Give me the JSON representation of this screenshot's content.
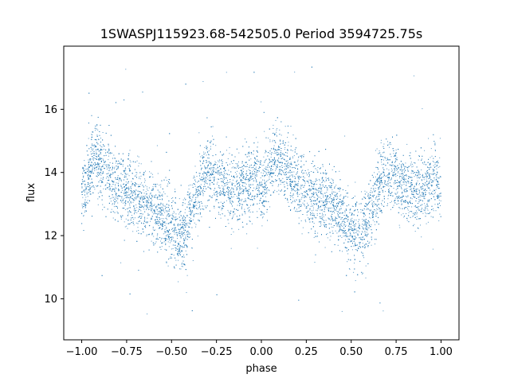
{
  "chart_data": {
    "type": "scatter",
    "title": "1SWASPJ115923.68-542505.0 Period 3594725.75s",
    "xlabel": "phase",
    "ylabel": "flux",
    "xlim": [
      -1.1,
      1.1
    ],
    "ylim": [
      8.7,
      18.0
    ],
    "xticks": [
      -1.0,
      -0.75,
      -0.5,
      -0.25,
      0.0,
      0.25,
      0.5,
      0.75,
      1.0
    ],
    "xtick_labels": [
      "−1.00",
      "−0.75",
      "−0.50",
      "−0.25",
      "0.00",
      "0.25",
      "0.50",
      "0.75",
      "1.00"
    ],
    "yticks": [
      10,
      12,
      14,
      16
    ],
    "ytick_labels": [
      "10",
      "12",
      "14",
      "16"
    ],
    "grid": false,
    "legend": "none",
    "marker_color": "#1f77b4",
    "series": [
      {
        "phase_range": [
          -1.0,
          1.0
        ],
        "n_points_approx": 30000,
        "profile_phase": [
          -1.0,
          -0.97,
          -0.93,
          -0.88,
          -0.82,
          -0.75,
          -0.68,
          -0.62,
          -0.57,
          -0.52,
          -0.47,
          -0.42,
          -0.38,
          -0.33,
          -0.28,
          -0.22,
          -0.15,
          -0.08,
          -0.03,
          0.0
        ],
        "profile_flux": [
          13.2,
          13.8,
          14.5,
          14.2,
          13.7,
          13.4,
          13.2,
          13.0,
          12.7,
          12.3,
          12.0,
          12.2,
          13.0,
          13.8,
          14.0,
          13.6,
          13.4,
          13.6,
          13.8,
          13.5
        ],
        "scatter_sigma": 0.55,
        "outlier_range": [
          9.0,
          17.4
        ],
        "repeat_period_in_phase": 1.0
      }
    ]
  }
}
